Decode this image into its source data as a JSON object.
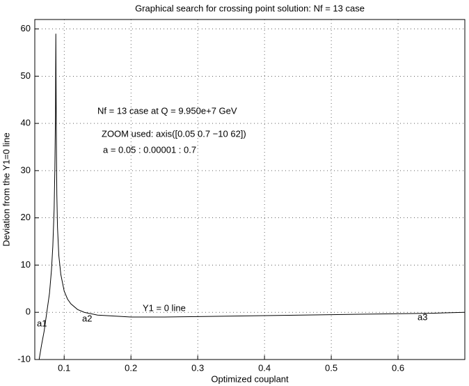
{
  "chart_data": {
    "type": "line",
    "title": "Graphical search for crossing point solution: Nf = 13 case",
    "xlabel": "Optimized couplant",
    "ylabel": "Deviation from the Y1=0 line",
    "annotations": [
      "Nf = 13 case at Q = 9.950e+7 GeV",
      "ZOOM used: axis([0.05 0.7 −10 62])",
      "a = 0.05 : 0.00001 : 0.7",
      "Y1 = 0 line",
      "a1",
      "a2",
      "a3"
    ],
    "xlim": [
      0.056,
      0.7
    ],
    "ylim": [
      -10,
      62
    ],
    "xticks": [
      0.1,
      0.2,
      0.3,
      0.4,
      0.5,
      0.6
    ],
    "yticks": [
      -10,
      0,
      10,
      20,
      30,
      40,
      50,
      60
    ],
    "grid": true,
    "series": [
      {
        "color": "#000000",
        "x": [
          0.0625,
          0.066,
          0.07,
          0.074,
          0.078,
          0.081,
          0.083,
          0.085,
          0.086,
          0.087,
          0.0875,
          0.088,
          0.0885,
          0.089,
          0.09,
          0.092,
          0.095,
          0.1,
          0.105,
          0.11,
          0.12,
          0.13,
          0.15,
          0.2,
          0.25,
          0.3,
          0.4,
          0.5,
          0.6,
          0.65,
          0.7
        ],
        "values": [
          -10,
          -7,
          -4,
          0,
          4,
          9,
          14,
          22,
          30,
          42,
          59,
          45,
          33,
          25,
          18,
          12,
          8,
          4.5,
          2.8,
          1.8,
          0.6,
          0,
          -0.6,
          -1,
          -1,
          -0.9,
          -0.7,
          -0.5,
          -0.3,
          -0.2,
          0
        ]
      }
    ]
  }
}
